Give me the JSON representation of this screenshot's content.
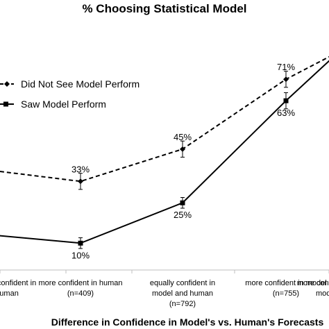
{
  "chart_data": {
    "type": "line",
    "title": "% Choosing Statistical Model",
    "xlabel": "Difference in Confidence in Model's vs. Human's Forecasts",
    "ylabel": "",
    "ylim": [
      0,
      85
    ],
    "grid": false,
    "legend_position": "top-left",
    "categories": [
      [
        "more confident in",
        "human"
      ],
      [
        "more confident in human",
        "(n=409)"
      ],
      [
        "equally confident in",
        "model and human",
        "(n=792)"
      ],
      [
        "more confident in model",
        "(n=755)"
      ],
      [
        "more confident in",
        "model"
      ]
    ],
    "series": [
      {
        "name": "Did Not See Model Perform",
        "style": "dashed",
        "marker": "diamond",
        "values": [
          37,
          33,
          45,
          71,
          80
        ],
        "errors": [
          3,
          3,
          3,
          3,
          3
        ],
        "labels": [
          "",
          "33%",
          "45%",
          "71%",
          ""
        ]
      },
      {
        "name": "Saw Model Perform",
        "style": "solid",
        "marker": "square",
        "values": [
          13,
          10,
          25,
          63,
          79
        ],
        "errors": [
          2,
          2,
          2,
          3,
          3
        ],
        "labels": [
          "",
          "10%",
          "25%",
          "63%",
          ""
        ]
      }
    ]
  }
}
